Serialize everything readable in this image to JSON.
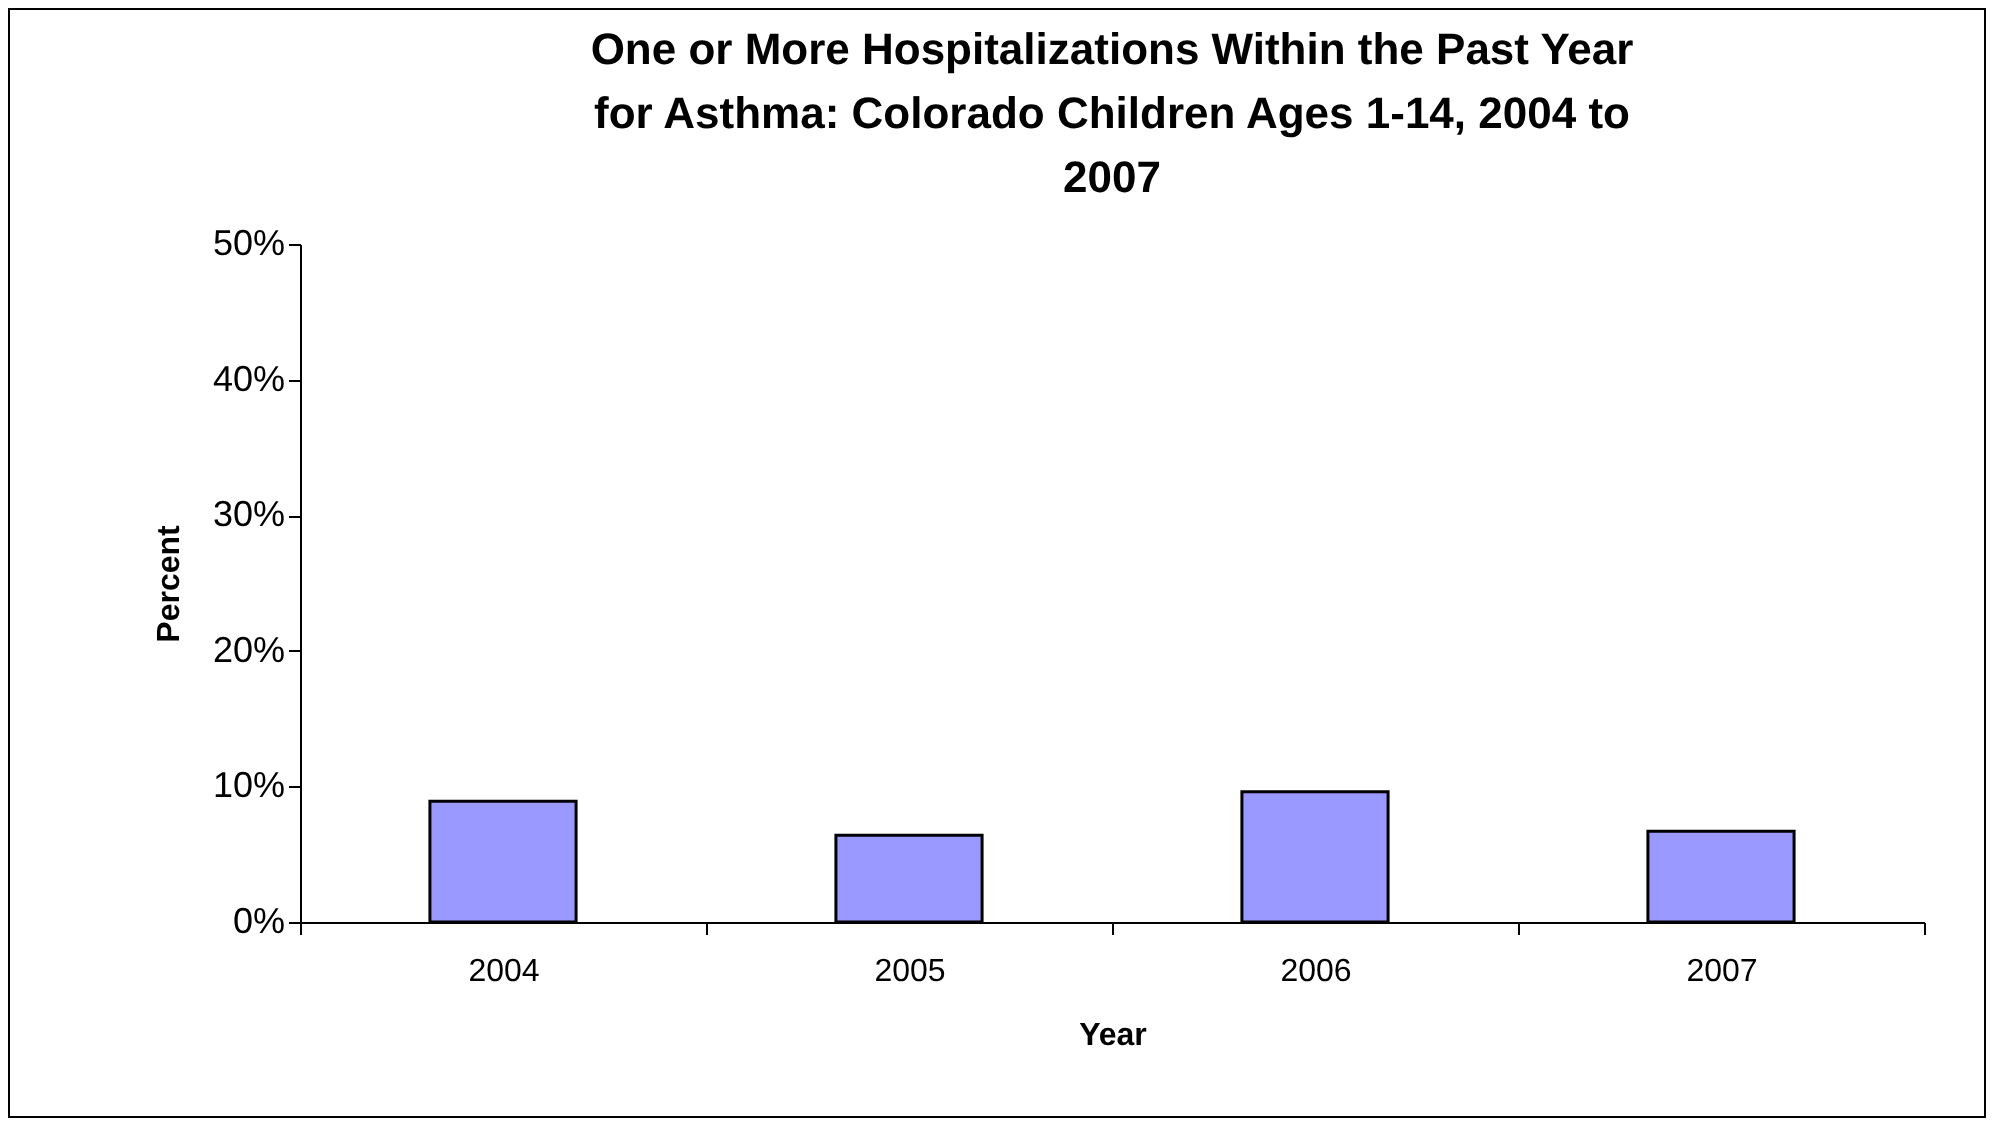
{
  "chart_data": {
    "type": "bar",
    "title": "One or More Hospitalizations Within the Past Year for Asthma: Colorado Children Ages 1-14, 2004 to 2007",
    "xlabel": "Year",
    "ylabel": "Percent",
    "categories": [
      "2004",
      "2005",
      "2006",
      "2007"
    ],
    "values": [
      8.9,
      6.4,
      9.6,
      6.7
    ],
    "color": "#9999ff",
    "ylim": [
      0,
      50
    ],
    "yticks": [
      {
        "value": 0,
        "label": "0%"
      },
      {
        "value": 10,
        "label": "10%"
      },
      {
        "value": 20,
        "label": "20%"
      },
      {
        "value": 30,
        "label": "30%"
      },
      {
        "value": 40,
        "label": "40%"
      },
      {
        "value": 50,
        "label": "50%"
      }
    ],
    "grid": false
  }
}
